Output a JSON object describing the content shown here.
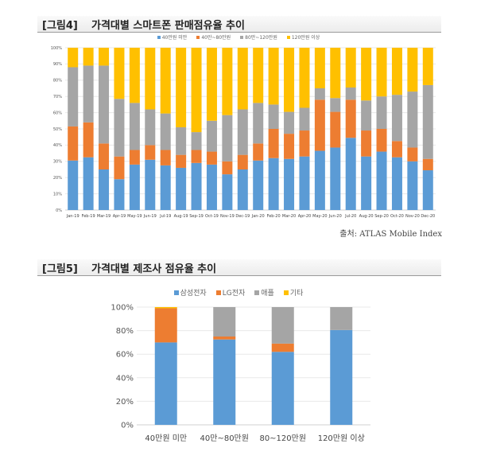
{
  "figure4": {
    "number": "[그림4]",
    "title": "가격대별 스마트폰 판매점유율 추이",
    "source": "출처: ATLAS Mobile Index"
  },
  "figure5": {
    "number": "[그림5]",
    "title": "가격대별 제조사 점유율 추이"
  },
  "chart_data": [
    {
      "type": "bar",
      "stacked": true,
      "categories": [
        "Jan-19",
        "Feb-19",
        "Mar-19",
        "Apr-19",
        "May-19",
        "Jun-19",
        "Jul-19",
        "Aug-19",
        "Sep-19",
        "Oct-19",
        "Nov-19",
        "Dec-19",
        "Jan-20",
        "Feb-20",
        "Mar-20",
        "Apr-20",
        "May-20",
        "Jun-20",
        "Jul-20",
        "Aug-20",
        "Sep-20",
        "Oct-20",
        "Nov-20",
        "Dec-20"
      ],
      "series": [
        {
          "name": "40만원 미만",
          "color": "#5b9bd5",
          "values": [
            30.5,
            32.5,
            25,
            19,
            28,
            31,
            27.5,
            26,
            29,
            28,
            22,
            25,
            30.5,
            32,
            31.5,
            33,
            36.5,
            38.5,
            44.5,
            33,
            36,
            32.5,
            30,
            24.5
          ]
        },
        {
          "name": "40만~80만원",
          "color": "#ed7d31",
          "values": [
            21,
            21.5,
            16,
            14,
            9,
            9,
            9.5,
            8,
            8,
            8,
            8,
            9,
            10.5,
            18,
            15.5,
            16,
            31.5,
            22,
            23.5,
            16,
            14,
            10,
            8.5,
            7
          ]
        },
        {
          "name": "80만~120만원",
          "color": "#a5a5a5",
          "values": [
            36.5,
            35,
            48,
            35.5,
            29,
            22,
            22.5,
            17,
            11,
            19,
            28.5,
            28,
            25,
            15,
            13.5,
            14,
            7,
            8.5,
            7.5,
            18.5,
            20,
            28.5,
            34.5,
            45.5
          ]
        },
        {
          "name": "120만원 이상",
          "color": "#ffc000",
          "values": [
            12,
            11,
            11,
            31.5,
            34,
            38,
            40.5,
            49,
            52,
            45,
            41.5,
            38,
            34,
            35,
            39.5,
            37,
            25,
            31,
            24.5,
            32.5,
            30,
            29,
            27,
            23
          ]
        }
      ],
      "yticks": [
        "0%",
        "10%",
        "20%",
        "30%",
        "40%",
        "50%",
        "60%",
        "70%",
        "80%",
        "90%",
        "100%"
      ],
      "ylim": [
        0,
        100
      ],
      "grid": true,
      "legend": "top"
    },
    {
      "type": "bar",
      "stacked": true,
      "categories": [
        "40만원 미만",
        "40만~80만원",
        "80~120만원",
        "120만원 이상"
      ],
      "series": [
        {
          "name": "삼성전자",
          "color": "#5b9bd5",
          "values": [
            70,
            72.5,
            62,
            80.5
          ]
        },
        {
          "name": "LG전자",
          "color": "#ed7d31",
          "values": [
            29,
            2.5,
            7,
            0
          ]
        },
        {
          "name": "애플",
          "color": "#a5a5a5",
          "values": [
            0,
            25,
            31,
            19.5
          ]
        },
        {
          "name": "기타",
          "color": "#ffc000",
          "values": [
            1,
            0,
            0,
            0
          ]
        }
      ],
      "yticks": [
        "0%",
        "20%",
        "40%",
        "60%",
        "80%",
        "100%"
      ],
      "ylim": [
        0,
        100
      ],
      "grid": true,
      "legend": "top"
    }
  ]
}
